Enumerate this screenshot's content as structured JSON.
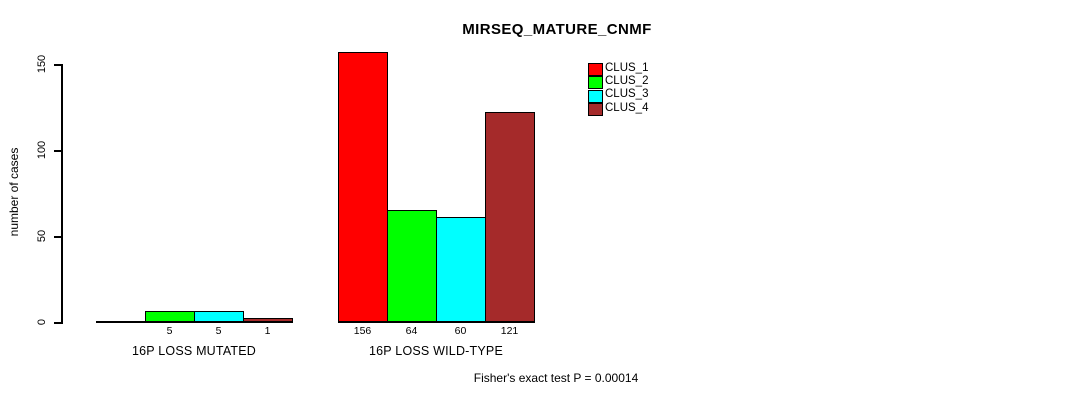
{
  "chart_data": {
    "type": "bar",
    "title": "MIRSEQ_MATURE_CNMF",
    "ylabel": "number of cases",
    "xlabel": "",
    "ylim": [
      0,
      156
    ],
    "yticks": [
      0,
      50,
      100,
      150
    ],
    "grid": false,
    "legend": {
      "position": "top-right",
      "entries": [
        {
          "label": "CLUS_1",
          "color": "#FF0000"
        },
        {
          "label": "CLUS_2",
          "color": "#00FF00"
        },
        {
          "label": "CLUS_3",
          "color": "#00FFFF"
        },
        {
          "label": "CLUS_4",
          "color": "#A52A2A"
        }
      ]
    },
    "categories": [
      "16P LOSS MUTATED",
      "16P LOSS WILD-TYPE"
    ],
    "series": [
      {
        "name": "CLUS_1",
        "color": "#FF0000",
        "values": [
          0,
          156
        ]
      },
      {
        "name": "CLUS_2",
        "color": "#00FF00",
        "values": [
          5,
          64
        ]
      },
      {
        "name": "CLUS_3",
        "color": "#00FFFF",
        "values": [
          5,
          60
        ]
      },
      {
        "name": "CLUS_4",
        "color": "#A52A2A",
        "values": [
          1,
          121
        ]
      }
    ],
    "bar_count_labels": [
      [
        "",
        "5",
        "5",
        "1"
      ],
      [
        "156",
        "64",
        "60",
        "121"
      ]
    ],
    "annotation": "Fisher's exact test P = 0.00014"
  }
}
